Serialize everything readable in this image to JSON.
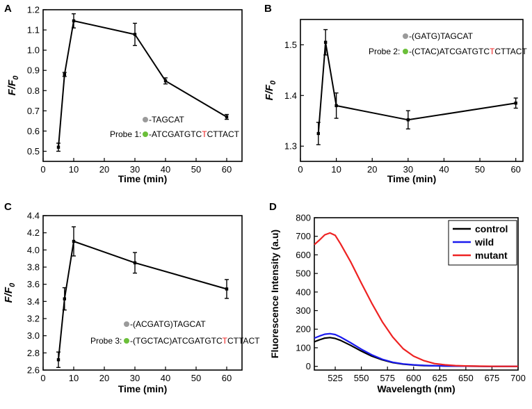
{
  "figure": {
    "palette": {
      "black": "#000000",
      "red": "#ee2222",
      "blue": "#1a1aee",
      "gray_dot": "#9a9a9a",
      "green_dot": "#6bbf3a",
      "highlight": "#ee2222"
    }
  },
  "chart_data": [
    {
      "id": "A",
      "panel_label": "A",
      "type": "line",
      "title": "",
      "xlabel": "Time (min)",
      "ylabel_main": "F/F",
      "ylabel_sub": "0",
      "xlim": [
        0,
        65
      ],
      "ylim": [
        0.45,
        1.2
      ],
      "xticks": [
        0,
        10,
        20,
        30,
        40,
        50,
        60
      ],
      "yticks": [
        0.5,
        0.6,
        0.7,
        0.8,
        0.9,
        1.0,
        1.1,
        1.2
      ],
      "ytick_labels": [
        "0.5",
        "0.6",
        "0.7",
        "0.8",
        "0.9",
        "1.0",
        "1.1",
        "1.2"
      ],
      "series": [
        {
          "name": "Probe 1",
          "x": [
            5,
            7,
            10,
            30,
            40,
            60
          ],
          "y": [
            0.52,
            0.88,
            1.145,
            1.078,
            0.848,
            0.67
          ],
          "err": [
            0.02,
            0.01,
            0.035,
            0.055,
            0.015,
            0.012
          ]
        }
      ],
      "probe": {
        "line1": "-TAGCAT",
        "label": "Probe 1:",
        "pre": "-ATCGATGTC",
        "mut": "T",
        "post": "CTTACT"
      }
    },
    {
      "id": "B",
      "panel_label": "B",
      "type": "line",
      "title": "",
      "xlabel": "Time (min)",
      "ylabel_main": "F/F",
      "ylabel_sub": "0",
      "xlim": [
        0,
        62
      ],
      "ylim": [
        1.27,
        1.55
      ],
      "xticks": [
        0,
        10,
        20,
        30,
        40,
        50,
        60
      ],
      "yticks": [
        1.3,
        1.4,
        1.5
      ],
      "ytick_labels": [
        "1.3",
        "1.4",
        "1.5"
      ],
      "series": [
        {
          "name": "Probe 2",
          "x": [
            5,
            7,
            10,
            30,
            60
          ],
          "y": [
            1.325,
            1.505,
            1.38,
            1.352,
            1.385
          ],
          "err": [
            0.022,
            0.025,
            0.025,
            0.018,
            0.01
          ]
        }
      ],
      "probe": {
        "line1": "-(GATG)TAGCAT",
        "label": "Probe 2:",
        "pre": "-(CTAC)ATCGATGTC",
        "mut": "T",
        "post": "CTTACT"
      }
    },
    {
      "id": "C",
      "panel_label": "C",
      "type": "line",
      "title": "",
      "xlabel": "Time (min)",
      "ylabel_main": "F/F",
      "ylabel_sub": "0",
      "xlim": [
        0,
        65
      ],
      "ylim": [
        2.6,
        4.4
      ],
      "xticks": [
        0,
        10,
        20,
        30,
        40,
        50,
        60
      ],
      "yticks": [
        2.6,
        2.8,
        3.0,
        3.2,
        3.4,
        3.6,
        3.8,
        4.0,
        4.2,
        4.4
      ],
      "ytick_labels": [
        "2.6",
        "2.8",
        "3.0",
        "3.2",
        "3.4",
        "3.6",
        "3.8",
        "4.0",
        "4.2",
        "4.4"
      ],
      "series": [
        {
          "name": "Probe 3",
          "x": [
            5,
            7,
            10,
            30,
            60
          ],
          "y": [
            2.72,
            3.43,
            4.1,
            3.85,
            3.545
          ],
          "err": [
            0.09,
            0.13,
            0.17,
            0.12,
            0.11
          ]
        }
      ],
      "probe": {
        "line1": "-(ACGATG)TAGCAT",
        "label": "Probe 3:",
        "pre": "-(TGCTAC)ATCGATGTC",
        "mut": "T",
        "post": "CTTACT"
      }
    },
    {
      "id": "D",
      "panel_label": "D",
      "type": "line",
      "title": "",
      "xlabel": "Wavelength (nm)",
      "ylabel": "Fluorescence Intensity (a.u)",
      "xlim": [
        505,
        700
      ],
      "ylim": [
        -20,
        800
      ],
      "xticks": [
        525,
        550,
        575,
        600,
        625,
        650,
        675,
        700
      ],
      "yticks": [
        0,
        100,
        200,
        300,
        400,
        500,
        600,
        700,
        800
      ],
      "legend_position": "top-right",
      "series": [
        {
          "name": "control",
          "x": [
            505,
            510,
            515,
            520,
            525,
            530,
            540,
            550,
            560,
            570,
            580,
            590,
            600,
            610,
            620,
            630,
            650,
            670,
            700
          ],
          "y": [
            132,
            143,
            152,
            155,
            150,
            140,
            112,
            82,
            55,
            35,
            20,
            12,
            7,
            4,
            3,
            2,
            1,
            0,
            0
          ]
        },
        {
          "name": "wild",
          "x": [
            505,
            510,
            515,
            520,
            525,
            530,
            540,
            550,
            560,
            570,
            580,
            590,
            600,
            610,
            620,
            630,
            650,
            670,
            700
          ],
          "y": [
            152,
            163,
            173,
            176,
            171,
            158,
            126,
            92,
            62,
            38,
            22,
            13,
            8,
            5,
            3,
            2,
            1,
            0,
            0
          ]
        },
        {
          "name": "mutant",
          "x": [
            505,
            510,
            515,
            520,
            525,
            530,
            540,
            550,
            560,
            570,
            580,
            590,
            600,
            610,
            620,
            630,
            640,
            650,
            660,
            680,
            700
          ],
          "y": [
            655,
            680,
            708,
            718,
            705,
            660,
            560,
            448,
            340,
            240,
            158,
            95,
            55,
            30,
            15,
            8,
            4,
            2,
            1,
            0,
            0
          ]
        }
      ]
    }
  ]
}
